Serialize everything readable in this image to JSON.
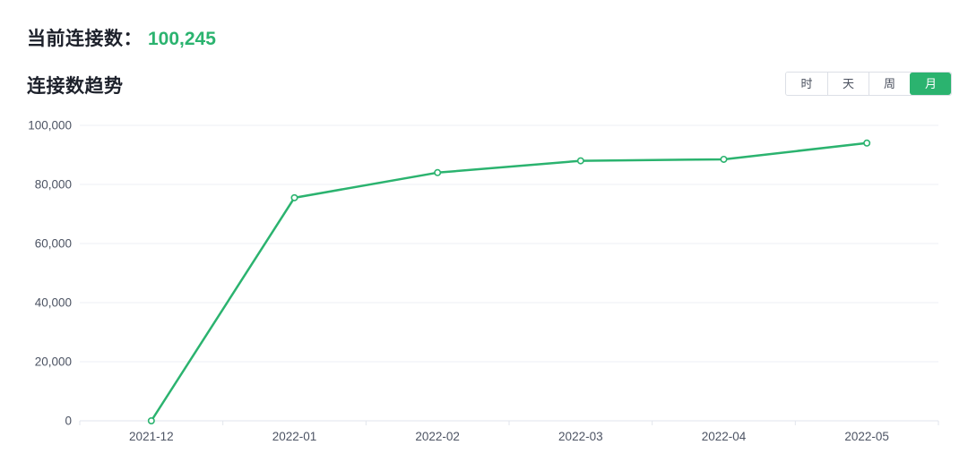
{
  "page": {
    "current_label": "当前连接数：",
    "current_value": "100,245",
    "chart_title": "连接数趋势"
  },
  "range_buttons": [
    {
      "label": "时",
      "active": false
    },
    {
      "label": "天",
      "active": false
    },
    {
      "label": "周",
      "active": false
    },
    {
      "label": "月",
      "active": true
    }
  ],
  "colors": {
    "accent": "#2bb36f",
    "grid": "#edeff4",
    "axis_line": "#e2e5ec",
    "axis_text": "#4d5464",
    "heading": "#1d212b",
    "button_text": "#4a505e",
    "button_border": "#dcdfe6"
  },
  "chart_data": {
    "type": "line",
    "title": "连接数趋势",
    "categories": [
      "2021-12",
      "2022-01",
      "2022-02",
      "2022-03",
      "2022-04",
      "2022-05"
    ],
    "series": [
      {
        "name": "连接数",
        "values": [
          0,
          75500,
          84000,
          88000,
          88500,
          94000
        ]
      }
    ],
    "xlabel": "",
    "ylabel": "",
    "ylim": [
      0,
      100000
    ],
    "y_ticks": [
      0,
      20000,
      40000,
      60000,
      80000,
      100000
    ],
    "grid": true,
    "legend": "none",
    "point_style": "hollow-circle"
  }
}
